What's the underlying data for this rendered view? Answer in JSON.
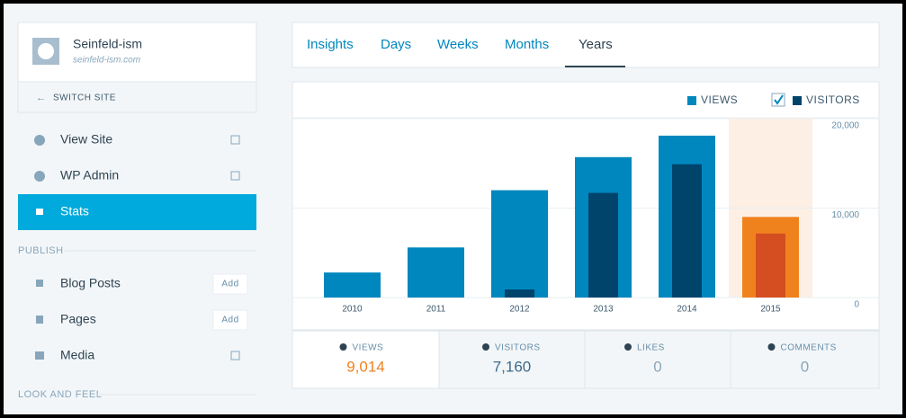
{
  "site": {
    "name": "Seinfeld-ism",
    "url": "seinfeld-ism.com",
    "switch": "SWITCH SITE"
  },
  "nav": {
    "items": [
      "View Site",
      "WP Admin",
      "Stats"
    ],
    "publish_heading": "PUBLISH",
    "publish": [
      {
        "label": "Blog Posts",
        "action": "Add"
      },
      {
        "label": "Pages",
        "action": "Add"
      },
      {
        "label": "Media"
      }
    ],
    "look_heading": "LOOK AND FEEL"
  },
  "tabs": [
    "Insights",
    "Days",
    "Weeks",
    "Months",
    "Years"
  ],
  "chart_data": {
    "type": "bar",
    "categories": [
      "2010",
      "2011",
      "2012",
      "2013",
      "2014",
      "2015"
    ],
    "series": [
      {
        "name": "VIEWS",
        "color": "#0087be",
        "highlight_color": "#f0821e",
        "values": [
          2800,
          5600,
          12000,
          15700,
          18100,
          9014
        ]
      },
      {
        "name": "VISITORS",
        "color": "#00436b",
        "highlight_color": "#d54e21",
        "values": [
          0,
          0,
          900,
          11700,
          14900,
          7160
        ]
      }
    ],
    "highlight_index": 5,
    "ylim": [
      0,
      20000
    ],
    "yticks": [
      0,
      {
        "value": 10000,
        "label": "10,000"
      },
      {
        "value": 20000,
        "label": "20,000"
      }
    ],
    "grid": true,
    "legend": "top-right"
  },
  "summary": [
    {
      "label": "VIEWS",
      "value": "9,014"
    },
    {
      "label": "VISITORS",
      "value": "7,160"
    },
    {
      "label": "LIKES",
      "value": "0"
    },
    {
      "label": "COMMENTS",
      "value": "0"
    }
  ]
}
